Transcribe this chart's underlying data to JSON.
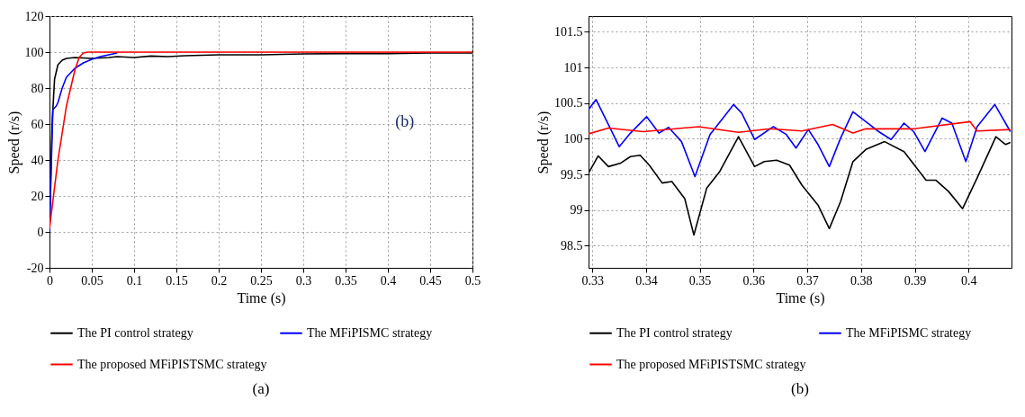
{
  "chart_data": [
    {
      "type": "line",
      "title": "(a)",
      "xlabel": "Time (s)",
      "ylabel": "Speed (r/s)",
      "xlim": [
        0,
        0.5
      ],
      "ylim": [
        -20,
        120
      ],
      "xticks": [
        0,
        0.05,
        0.1,
        0.15,
        0.2,
        0.25,
        0.3,
        0.35,
        0.4,
        0.45,
        0.5
      ],
      "yticks": [
        -20,
        0,
        20,
        40,
        60,
        80,
        100,
        120
      ],
      "grid": true,
      "legend": "bottom",
      "annotations": [
        "(b)"
      ],
      "series": [
        {
          "name": "The PI control strategy",
          "color": "#000000",
          "x": [
            0,
            0.003,
            0.006,
            0.01,
            0.015,
            0.02,
            0.03,
            0.05,
            0.07,
            0.08,
            0.1,
            0.12,
            0.14,
            0.16,
            0.2,
            0.25,
            0.3,
            0.35,
            0.4,
            0.45,
            0.5
          ],
          "values": [
            0,
            60,
            85,
            93,
            95.5,
            96.5,
            97,
            96.5,
            97,
            97.5,
            97,
            97.8,
            97.5,
            98,
            98.5,
            98.5,
            99,
            99.2,
            99.2,
            99.5,
            99.5
          ]
        },
        {
          "name": "The MFiPISMC strategy",
          "color": "#0000ff",
          "x": [
            0,
            0.002,
            0.004,
            0.008,
            0.01,
            0.015,
            0.02,
            0.03,
            0.04,
            0.05,
            0.06,
            0.07,
            0.08
          ],
          "values": [
            0,
            35,
            68,
            70,
            72,
            80,
            86,
            91,
            94,
            96,
            97.5,
            98.5,
            99.5
          ]
        },
        {
          "name": "The proposed MFiPISTSMC strategy",
          "color": "#ff0000",
          "x": [
            0,
            0.01,
            0.02,
            0.03,
            0.035,
            0.04,
            0.045,
            0.1,
            0.5
          ],
          "values": [
            2,
            40,
            70,
            90,
            97,
            99.5,
            100,
            100,
            100
          ]
        }
      ]
    },
    {
      "type": "line",
      "title": "(b)",
      "xlabel": "Time (s)",
      "ylabel": "Speed (r/s)",
      "xlim": [
        0.3293,
        0.408
      ],
      "ylim": [
        98.19,
        101.72
      ],
      "xticks": [
        0.33,
        0.34,
        0.35,
        0.36,
        0.37,
        0.38,
        0.39,
        0.4
      ],
      "yticks": [
        98.5,
        99,
        99.5,
        100,
        100.5,
        101,
        101.5
      ],
      "grid": true,
      "legend": "bottom",
      "series": [
        {
          "name": "The PI control strategy",
          "color": "#000000",
          "x": [
            0.3293,
            0.3311,
            0.333,
            0.3353,
            0.3371,
            0.3389,
            0.3406,
            0.343,
            0.3448,
            0.3472,
            0.3489,
            0.3513,
            0.3537,
            0.3572,
            0.3602,
            0.362,
            0.3643,
            0.3667,
            0.369,
            0.372,
            0.3741,
            0.3762,
            0.3785,
            0.3809,
            0.3844,
            0.388,
            0.3921,
            0.3939,
            0.3963,
            0.3989,
            0.4016,
            0.4051,
            0.4069,
            0.4078
          ],
          "values": [
            99.52,
            99.76,
            99.61,
            99.66,
            99.75,
            99.77,
            99.63,
            99.38,
            99.4,
            99.16,
            98.65,
            99.31,
            99.54,
            100.03,
            99.61,
            99.68,
            99.7,
            99.63,
            99.35,
            99.07,
            98.74,
            99.12,
            99.68,
            99.85,
            99.96,
            99.82,
            99.42,
            99.42,
            99.26,
            99.02,
            99.45,
            100.03,
            99.92,
            99.95
          ]
        },
        {
          "name": "The MFiPISMC strategy",
          "color": "#0000ff",
          "x": [
            0.3293,
            0.3307,
            0.333,
            0.335,
            0.3371,
            0.3401,
            0.3424,
            0.3442,
            0.3466,
            0.3491,
            0.3519,
            0.3543,
            0.3563,
            0.3578,
            0.3602,
            0.3637,
            0.3661,
            0.3679,
            0.3702,
            0.372,
            0.3741,
            0.3762,
            0.3785,
            0.3809,
            0.3833,
            0.3856,
            0.388,
            0.3898,
            0.3919,
            0.3951,
            0.3969,
            0.3995,
            0.4016,
            0.4049,
            0.4078
          ],
          "values": [
            100.41,
            100.55,
            100.2,
            99.89,
            100.08,
            100.31,
            100.08,
            100.16,
            99.96,
            99.47,
            100.06,
            100.29,
            100.48,
            100.36,
            99.99,
            100.17,
            100.06,
            99.87,
            100.13,
            99.92,
            99.61,
            100.01,
            100.38,
            100.24,
            100.1,
            99.99,
            100.22,
            100.1,
            99.82,
            100.29,
            100.22,
            99.68,
            100.17,
            100.48,
            100.1
          ]
        },
        {
          "name": "The proposed MFiPISTSMC strategy",
          "color": "#ff0000",
          "x": [
            0.3293,
            0.333,
            0.3395,
            0.3498,
            0.3572,
            0.3631,
            0.369,
            0.3747,
            0.3785,
            0.3809,
            0.3898,
            0.4003,
            0.4016,
            0.4078
          ],
          "values": [
            100.07,
            100.15,
            100.1,
            100.17,
            100.09,
            100.14,
            100.11,
            100.2,
            100.08,
            100.14,
            100.14,
            100.24,
            100.11,
            100.13
          ]
        }
      ]
    }
  ]
}
